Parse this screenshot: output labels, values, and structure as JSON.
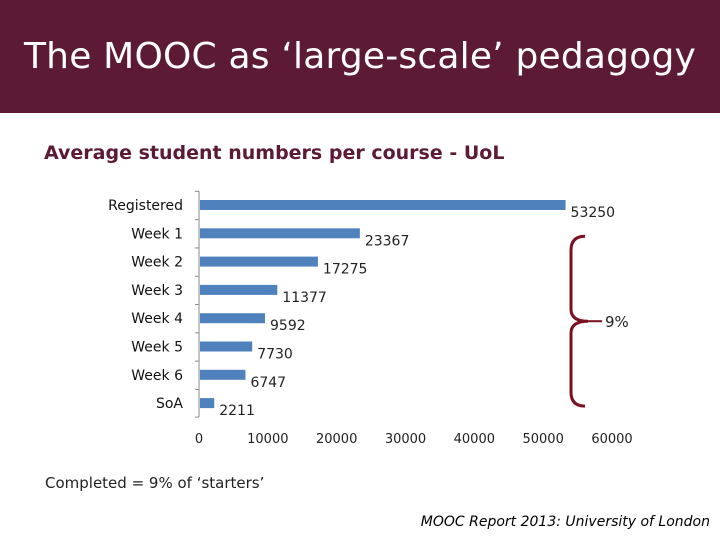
{
  "slide": {
    "title": "The MOOC as ‘large-scale’ pedagogy",
    "footnote": "Completed = 9% of ‘starters’",
    "source": "MOOC Report 2013: University of London"
  },
  "colors": {
    "band": "#5c1a35",
    "bar": "#4f81bd",
    "brace": "#7a1020"
  },
  "chart_data": {
    "type": "bar",
    "orientation": "horizontal",
    "title": "Average student numbers per course - UoL",
    "categories": [
      "Registered",
      "Week 1",
      "Week 2",
      "Week 3",
      "Week 4",
      "Week 5",
      "Week 6",
      "SoA"
    ],
    "values": [
      53250,
      23367,
      17275,
      11377,
      9592,
      7730,
      6747,
      2211
    ],
    "value_labels": [
      "53250",
      "23367",
      "17275",
      "11377",
      "9592",
      "7730",
      "6747",
      "2211"
    ],
    "xlim": [
      0,
      60000
    ],
    "xticks": [
      0,
      10000,
      20000,
      30000,
      40000,
      50000,
      60000
    ],
    "xtick_labels": [
      "0",
      "10000",
      "20000",
      "30000",
      "40000",
      "50000",
      "60000"
    ],
    "grid": false,
    "legend": "none",
    "annotation": {
      "text": "9%",
      "brace_from": "Week 1",
      "brace_to": "SoA"
    }
  }
}
